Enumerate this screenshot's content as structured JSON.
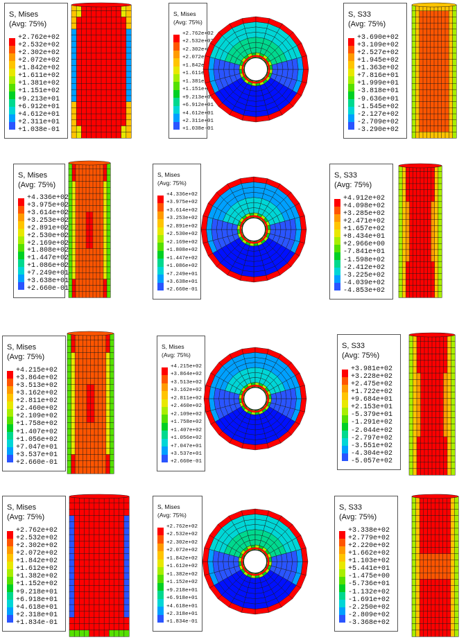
{
  "figure_rows": [
    {
      "mises": {
        "title": "S, Mises",
        "avg": "(Avg: 75%)",
        "values": [
          "+2.762e+02",
          "+2.532e+02",
          "+2.302e+02",
          "+2.072e+02",
          "+1.842e+02",
          "+1.611e+02",
          "+1.381e+02",
          "+1.151e+02",
          "+9.213e+01",
          "+6.912e+01",
          "+4.612e+01",
          "+2.311e+01",
          "+1.038e-01"
        ]
      },
      "s33": {
        "title": "S, S33",
        "avg": "(Avg: 75%)",
        "values": [
          "+3.690e+02",
          "+3.109e+02",
          "+2.527e+02",
          "+1.945e+02",
          "+1.363e+02",
          "+7.816e+01",
          "+1.999e+01",
          "-3.818e+01",
          "-9.636e+01",
          "-1.545e+02",
          "-2.127e+02",
          "-2.709e+02",
          "-3.290e+02"
        ]
      }
    },
    {
      "mises": {
        "title": "S, Mises",
        "avg": "(Avg: 75%)",
        "values": [
          "+4.336e+02",
          "+3.975e+02",
          "+3.614e+02",
          "+3.253e+02",
          "+2.891e+02",
          "+2.530e+02",
          "+2.169e+02",
          "+1.808e+02",
          "+1.447e+02",
          "+1.086e+02",
          "+7.249e+01",
          "+3.638e+01",
          "+2.660e-01"
        ]
      },
      "s33": {
        "title": "S, S33",
        "avg": "(Avg: 75%)",
        "values": [
          "+4.912e+02",
          "+4.098e+02",
          "+3.285e+02",
          "+2.471e+02",
          "+1.657e+02",
          "+8.434e+01",
          "+2.966e+00",
          "-7.841e+01",
          "-1.598e+02",
          "-2.412e+02",
          "-3.225e+02",
          "-4.039e+02",
          "-4.853e+02"
        ]
      }
    },
    {
      "mises": {
        "title": "S, Mises",
        "avg": "(Avg: 75%)",
        "values": [
          "+4.215e+02",
          "+3.864e+02",
          "+3.513e+02",
          "+3.162e+02",
          "+2.811e+02",
          "+2.460e+02",
          "+2.109e+02",
          "+1.758e+02",
          "+1.407e+02",
          "+1.056e+02",
          "+7.047e+01",
          "+3.537e+01",
          "+2.660e-01"
        ]
      },
      "s33": {
        "title": "S, S33",
        "avg": "(Avg: 75%)",
        "values": [
          "+3.981e+02",
          "+3.228e+02",
          "+2.475e+02",
          "+1.722e+02",
          "+9.684e+01",
          "+2.153e+01",
          "-5.379e+01",
          "-1.291e+02",
          "-2.044e+02",
          "-2.797e+02",
          "-3.551e+02",
          "-4.304e+02",
          "-5.057e+02"
        ]
      }
    },
    {
      "mises": {
        "title": "S, Mises",
        "avg": "(Avg: 75%)",
        "values": [
          "+2.762e+02",
          "+2.532e+02",
          "+2.302e+02",
          "+2.072e+02",
          "+1.842e+02",
          "+1.612e+02",
          "+1.382e+02",
          "+1.152e+02",
          "+9.218e+01",
          "+6.918e+01",
          "+4.618e+01",
          "+2.318e+01",
          "+1.834e-01"
        ]
      },
      "s33": {
        "title": "S, S33",
        "avg": "(Avg: 75%)",
        "values": [
          "+3.338e+02",
          "+2.779e+02",
          "+2.220e+02",
          "+1.662e+02",
          "+1.103e+02",
          "+5.441e+01",
          "-1.475e+00",
          "-5.736e+01",
          "-1.132e+02",
          "-1.691e+02",
          "-2.250e+02",
          "-2.809e+02",
          "-3.368e+02"
        ]
      }
    }
  ],
  "colormap": [
    "#ff0000",
    "#ff5500",
    "#ff9a00",
    "#ffc400",
    "#e8e800",
    "#a8ee00",
    "#55e000",
    "#00d024",
    "#00d98e",
    "#00d6d6",
    "#00a0ff",
    "#2a55ff",
    "#0010ff"
  ]
}
